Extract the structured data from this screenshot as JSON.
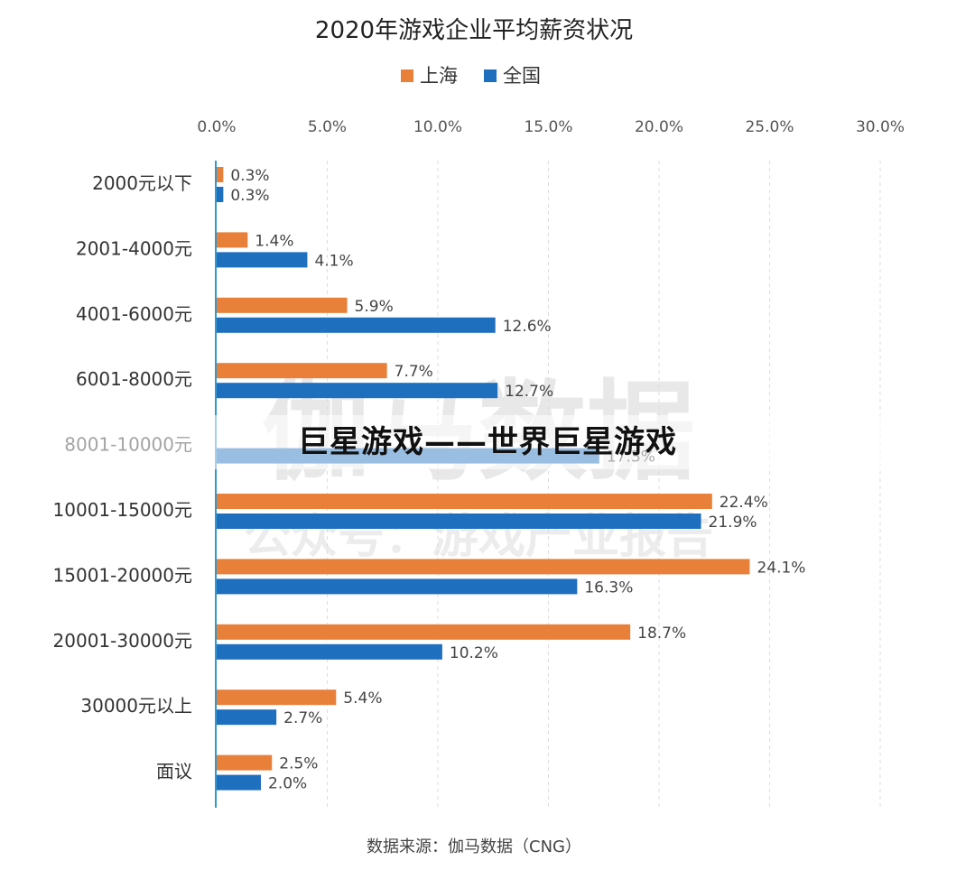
{
  "overlay_text": "巨星游戏——世界巨星游戏",
  "watermark": {
    "main": "伽马数据",
    "sub": "公众号：游戏产业报告"
  },
  "source": "数据来源：伽马数据（CNG）",
  "colors": {
    "shanghai": "#E8803A",
    "national": "#1F6FBF",
    "axis": "#3399CC",
    "grid": "#dddddd"
  },
  "chart_data": {
    "type": "bar",
    "orientation": "horizontal",
    "title": "2020年游戏企业平均薪资状况",
    "categories": [
      "2000元以下",
      "2001-4000元",
      "4001-6000元",
      "6001-8000元",
      "8001-10000元",
      "10001-15000元",
      "15001-20000元",
      "20001-30000元",
      "30000元以上",
      "面议"
    ],
    "series": [
      {
        "name": "上海",
        "values": [
          0.3,
          1.4,
          5.9,
          7.7,
          null,
          22.4,
          24.1,
          18.7,
          5.4,
          2.5
        ],
        "labels": [
          "0.3%",
          "1.4%",
          "5.9%",
          "7.7%",
          "",
          "22.4%",
          "24.1%",
          "18.7%",
          "5.4%",
          "2.5%"
        ]
      },
      {
        "name": "全国",
        "values": [
          0.3,
          4.1,
          12.6,
          12.7,
          17.3,
          21.9,
          16.3,
          10.2,
          2.7,
          2.0
        ],
        "labels": [
          "0.3%",
          "4.1%",
          "12.6%",
          "12.7%",
          "17.3%",
          "21.9%",
          "16.3%",
          "10.2%",
          "2.7%",
          "2.0%"
        ]
      }
    ],
    "xlim": [
      0,
      30
    ],
    "xticks": [
      "0.0%",
      "5.0%",
      "10.0%",
      "15.0%",
      "20.0%",
      "25.0%",
      "30.0%"
    ],
    "grid": true,
    "legend": "top-center"
  }
}
